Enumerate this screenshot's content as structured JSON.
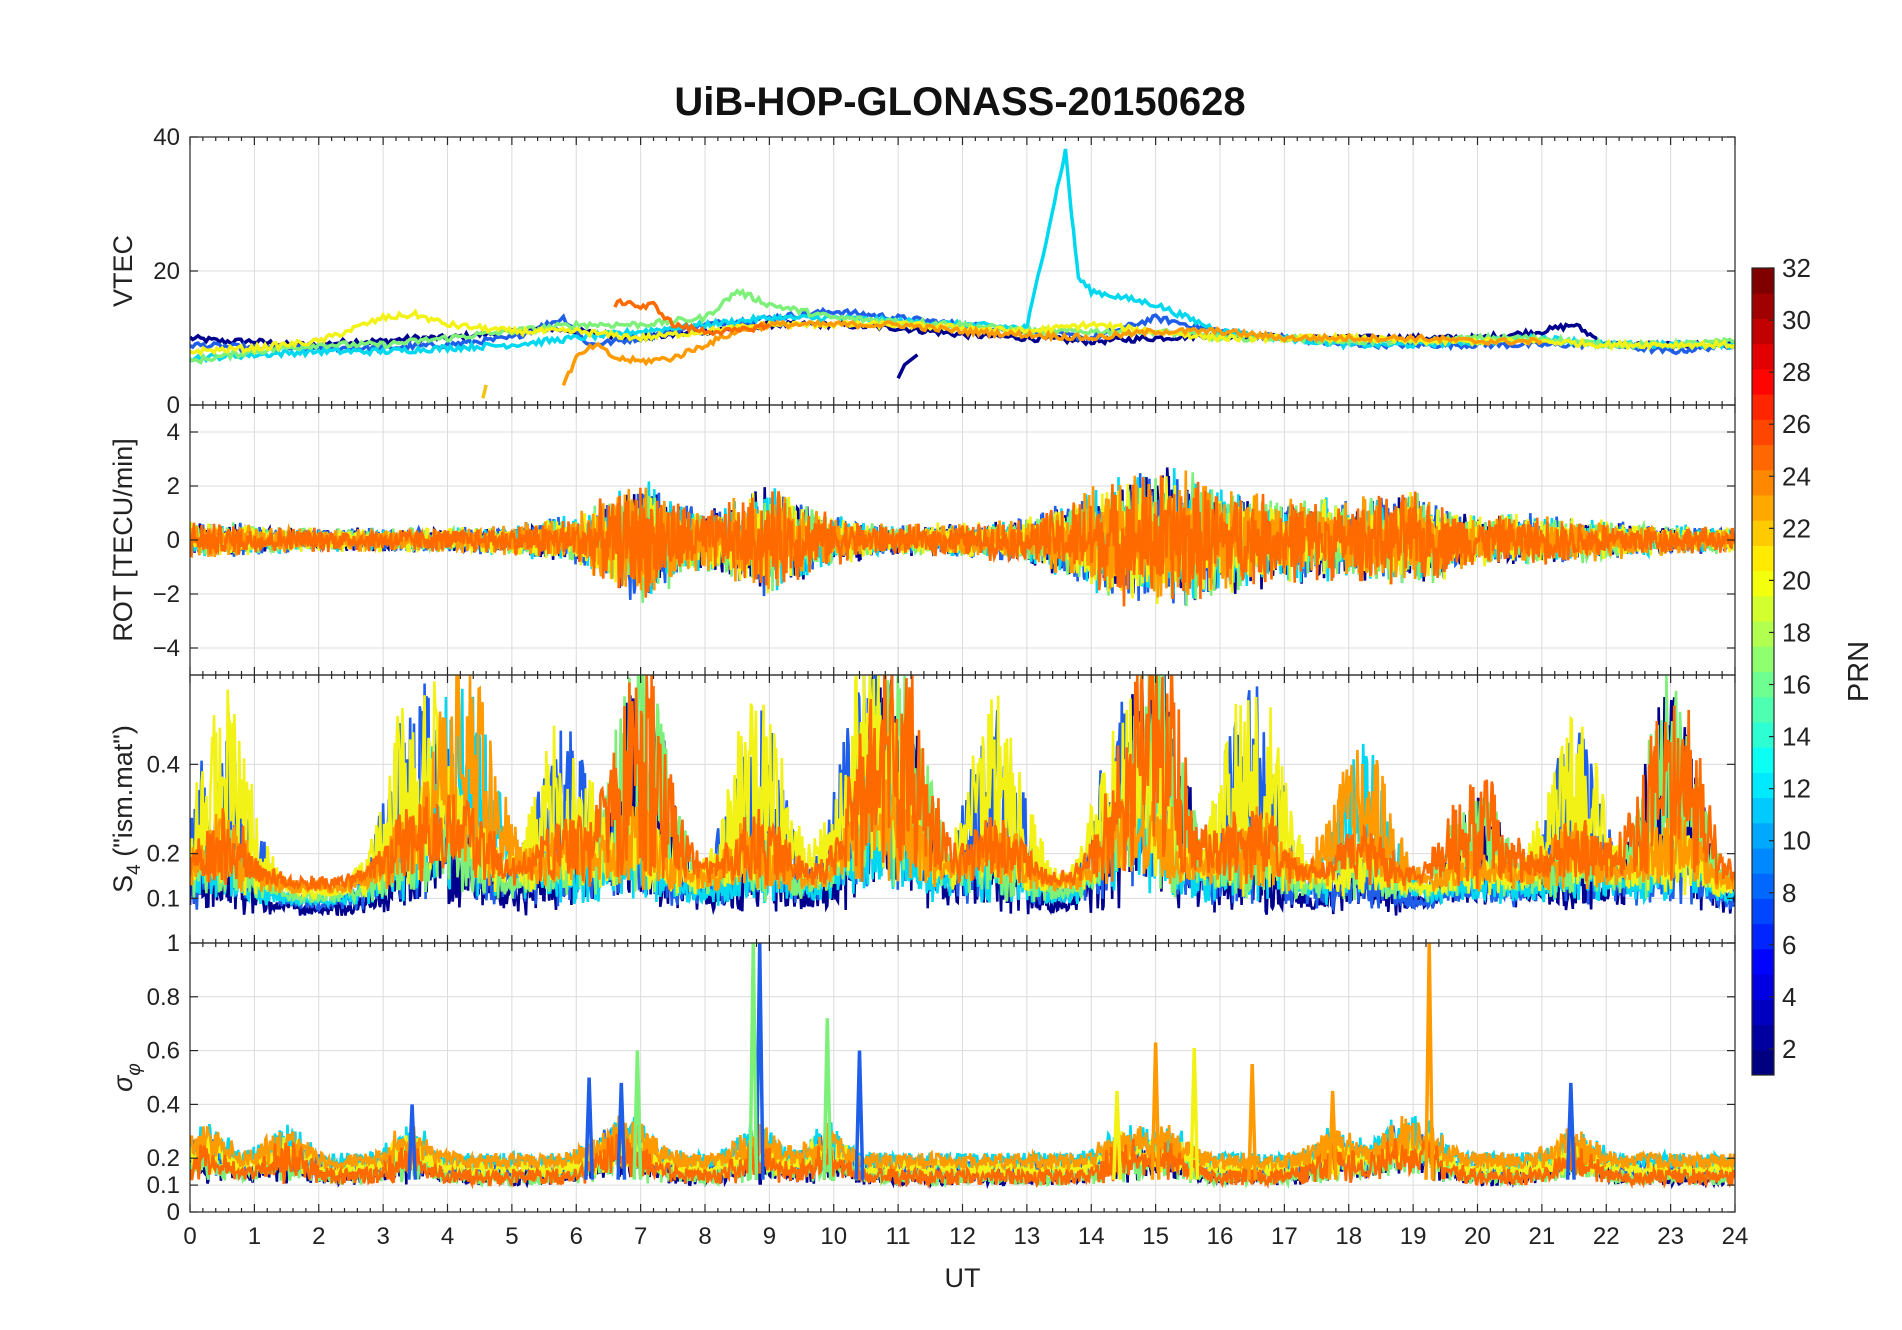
{
  "title": "UiB-HOP-GLONASS-20150628",
  "chart_data": [
    {
      "type": "line",
      "panel": "vtec",
      "ylabel": "VTEC",
      "ylim": [
        0,
        40
      ],
      "yticks": [
        "0",
        "20",
        "40"
      ],
      "xlim": [
        0,
        24
      ],
      "series": [
        {
          "color": "#00008f",
          "x": [
            0,
            0.5,
            1,
            1.5,
            2,
            2.5,
            3,
            3.5,
            4,
            4.5,
            5,
            5.5,
            6,
            7,
            8,
            9,
            10,
            11,
            12,
            13,
            14,
            15,
            16,
            17,
            18,
            19,
            20,
            21,
            21.5,
            22,
            23,
            24
          ],
          "y": [
            10,
            9.5,
            9.5,
            9,
            9,
            9.5,
            9.5,
            10,
            10,
            10.5,
            11,
            11.5,
            11,
            10,
            11,
            12,
            12,
            11.5,
            10.5,
            10,
            9.5,
            10,
            10.5,
            10,
            10,
            10,
            10,
            11,
            12,
            9,
            9,
            9
          ]
        },
        {
          "color": "#1e5ee8",
          "x": [
            0,
            1,
            2,
            3,
            4,
            5,
            5.8,
            6.2,
            7,
            8,
            9,
            10,
            11,
            12,
            13,
            14,
            15,
            16,
            17,
            18,
            19,
            20,
            21,
            22,
            23,
            24
          ],
          "y": [
            9,
            8.5,
            8.5,
            8.5,
            9,
            10,
            13,
            9,
            10,
            12,
            13,
            14,
            13,
            12,
            11,
            10,
            13,
            11,
            10,
            9,
            9,
            9,
            9,
            9,
            8,
            9
          ]
        },
        {
          "color": "#00d8f0",
          "x": [
            0,
            1,
            2,
            3,
            4,
            5,
            6,
            7,
            8,
            9,
            10,
            11,
            12,
            13,
            13.6,
            13.7,
            13.8,
            14,
            14.5,
            15,
            16,
            17,
            18,
            19,
            20,
            21,
            22,
            23,
            24
          ],
          "y": [
            7,
            7.5,
            8,
            8,
            8.5,
            9,
            10,
            11,
            12,
            13,
            13,
            12.5,
            12,
            11.5,
            38,
            28,
            19,
            17,
            16,
            15,
            11,
            10,
            9,
            9,
            9.5,
            10,
            9,
            9,
            9
          ]
        },
        {
          "color": "#7df07a",
          "x": [
            0,
            1,
            2,
            3,
            4,
            5,
            6,
            7,
            8,
            8.5,
            9,
            10,
            11,
            12,
            13,
            14,
            15,
            16,
            17,
            18,
            19,
            20,
            21,
            22,
            23,
            24
          ],
          "y": [
            6.5,
            8,
            9,
            9,
            10,
            11,
            12,
            12,
            13,
            17,
            15,
            13,
            12.5,
            12,
            11,
            11,
            11,
            10,
            10,
            9.5,
            9.5,
            10,
            10,
            9,
            9,
            9.5
          ]
        },
        {
          "color": "#f2f216",
          "x": [
            0,
            1,
            2,
            3,
            3.5,
            4,
            5,
            6,
            7,
            8,
            9,
            10,
            11,
            12,
            13,
            14,
            15,
            16,
            17,
            18,
            19,
            20,
            21,
            22,
            23,
            24
          ],
          "y": [
            8,
            8.5,
            9.5,
            13,
            13.5,
            12,
            11,
            11,
            10,
            11,
            12,
            12,
            12,
            11.5,
            11,
            12,
            11,
            10,
            10,
            10,
            9.5,
            9.5,
            9.5,
            9,
            9,
            9
          ]
        },
        {
          "color": "#ff9a00",
          "x": [
            5.8,
            6,
            6.3,
            6.6,
            7,
            7.5,
            8,
            8.5,
            9,
            10,
            11,
            12,
            13,
            14,
            15,
            16,
            17,
            18,
            19,
            20,
            21
          ],
          "y": [
            3,
            7,
            9,
            7,
            6.5,
            7,
            9,
            11,
            12,
            12,
            12,
            11,
            10.5,
            10,
            11,
            11,
            10,
            10,
            10,
            9.5,
            9.5
          ]
        },
        {
          "color": "#ff6a00",
          "x": [
            6.6,
            6.8,
            7,
            7.2,
            7.5,
            8,
            8.5,
            9
          ],
          "y": [
            15,
            15.5,
            14.5,
            15,
            12,
            11,
            11,
            12
          ]
        }
      ]
    },
    {
      "type": "line",
      "panel": "rot",
      "ylabel": "ROT [TECU/min]",
      "ylim": [
        -5,
        5
      ],
      "yticks": [
        "-4",
        "-2",
        "0",
        "2",
        "4"
      ],
      "xlim": [
        0,
        24
      ],
      "noise_profile_x": [
        0,
        1,
        2,
        3,
        4,
        5,
        6,
        7,
        8,
        9,
        10,
        11,
        12,
        13,
        14,
        15,
        16,
        17,
        18,
        19,
        20,
        21,
        22,
        23,
        24
      ],
      "noise_profile_amplitude": [
        0.8,
        0.6,
        0.5,
        0.5,
        0.5,
        0.6,
        1.0,
        2.5,
        1.2,
        2.2,
        1.0,
        0.6,
        0.7,
        0.9,
        2.0,
        3.0,
        2.2,
        1.8,
        1.6,
        2.0,
        1.0,
        1.0,
        0.8,
        0.6,
        0.5
      ],
      "series_colors": [
        "#00008f",
        "#1e5ee8",
        "#00d8f0",
        "#7df07a",
        "#f2f216",
        "#ff9a00",
        "#ff6a00"
      ]
    },
    {
      "type": "line",
      "panel": "s4",
      "ylabel": "S₄ (\"ism.mat\")",
      "ylim": [
        0,
        0.6
      ],
      "yticks": [
        "0.1",
        "0.2",
        "0.4"
      ],
      "ytick_values": [
        0.1,
        0.2,
        0.4
      ],
      "xlim": [
        0,
        24
      ],
      "series_colors": [
        "#00008f",
        "#1e5ee8",
        "#00d8f0",
        "#7df07a",
        "#f2f216",
        "#ff9a00",
        "#ff6a00"
      ]
    },
    {
      "type": "line",
      "panel": "sigma-phi",
      "ylabel": "σ_φ",
      "ylim": [
        0,
        1
      ],
      "yticks": [
        "0",
        "0.1",
        "0.2",
        "0.4",
        "0.6",
        "0.8",
        "1"
      ],
      "ytick_values": [
        0,
        0.1,
        0.2,
        0.4,
        0.6,
        0.8,
        1
      ],
      "xlim": [
        0,
        24
      ],
      "xlabel": "UT",
      "xticks": [
        "0",
        "1",
        "2",
        "3",
        "4",
        "5",
        "6",
        "7",
        "8",
        "9",
        "10",
        "11",
        "12",
        "13",
        "14",
        "15",
        "16",
        "17",
        "18",
        "19",
        "20",
        "21",
        "22",
        "23",
        "24"
      ],
      "spikes": [
        {
          "x": 8.85,
          "y": 1.0,
          "color": "#1e5ee8"
        },
        {
          "x": 8.75,
          "y": 1.0,
          "color": "#7df07a"
        },
        {
          "x": 19.25,
          "y": 1.0,
          "color": "#ff9a00"
        },
        {
          "x": 9.9,
          "y": 0.72,
          "color": "#7df07a"
        },
        {
          "x": 15.0,
          "y": 0.63,
          "color": "#ff9a00"
        },
        {
          "x": 15.6,
          "y": 0.61,
          "color": "#f2f216"
        },
        {
          "x": 6.95,
          "y": 0.6,
          "color": "#7df07a"
        },
        {
          "x": 10.4,
          "y": 0.6,
          "color": "#1e5ee8"
        },
        {
          "x": 16.5,
          "y": 0.55,
          "color": "#ff9a00"
        },
        {
          "x": 6.2,
          "y": 0.5,
          "color": "#1e5ee8"
        },
        {
          "x": 21.45,
          "y": 0.48,
          "color": "#1e5ee8"
        },
        {
          "x": 6.7,
          "y": 0.48,
          "color": "#1e5ee8"
        },
        {
          "x": 3.45,
          "y": 0.4,
          "color": "#1e5ee8"
        },
        {
          "x": 14.4,
          "y": 0.45,
          "color": "#f2f216"
        },
        {
          "x": 17.75,
          "y": 0.45,
          "color": "#ff9a00"
        }
      ],
      "series_colors": [
        "#00008f",
        "#1e5ee8",
        "#00d8f0",
        "#7df07a",
        "#f2f216",
        "#ff9a00",
        "#ff6a00"
      ]
    }
  ],
  "colorbar": {
    "label": "PRN",
    "range": [
      1,
      32
    ],
    "ticks": [
      "2",
      "4",
      "6",
      "8",
      "10",
      "12",
      "14",
      "16",
      "18",
      "20",
      "22",
      "24",
      "26",
      "28",
      "30",
      "32"
    ],
    "tick_values": [
      2,
      4,
      6,
      8,
      10,
      12,
      14,
      16,
      18,
      20,
      22,
      24,
      26,
      28,
      30,
      32
    ],
    "colormap": "jet"
  }
}
